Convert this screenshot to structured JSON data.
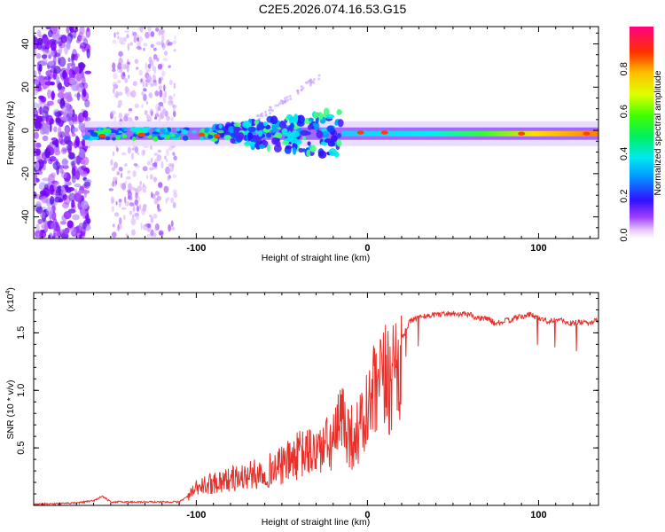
{
  "title": "C2E5.2026.074.16.53.G15",
  "chart_data": [
    {
      "type": "heatmap",
      "xlabel": "Height of straight line (km)",
      "ylabel": "Frequency (Hz)",
      "xlim": [
        -195,
        135
      ],
      "ylim": [
        -50,
        48
      ],
      "x_ticks": [
        -100,
        0,
        100
      ],
      "y_ticks": [
        -40,
        -20,
        0,
        20,
        40
      ],
      "colorbar": {
        "label": "Normalized spectral amplitude",
        "range": [
          0.0,
          1.0
        ],
        "ticks": [
          "0.0",
          "0.2",
          "0.4",
          "0.6",
          "0.8"
        ],
        "tick_values": [
          0.0,
          0.2,
          0.4,
          0.6,
          0.8
        ]
      },
      "features": [
        {
          "name": "noise-region-1",
          "x_range": [
            -195,
            -163
          ],
          "f_range": [
            -50,
            48
          ],
          "amplitude": 0.15
        },
        {
          "name": "noise-region-2",
          "x_range": [
            -150,
            -112
          ],
          "f_range": [
            -50,
            48
          ],
          "amplitude": 0.08
        },
        {
          "name": "tone-band",
          "x_range": [
            -165,
            135
          ],
          "f_center": -1.5,
          "amplitude": 0.95
        },
        {
          "name": "upper-branch",
          "x_start": -65,
          "x_end": -28,
          "f_start": 5,
          "f_end": 25,
          "amplitude": 0.1
        }
      ]
    },
    {
      "type": "line",
      "xlabel": "Height of straight line (km)",
      "ylabel": "SNR (10 * v/v)",
      "multiplier": "(x10^4)",
      "multiplier_base": "(x10",
      "multiplier_exp": "4",
      "multiplier_close": ")",
      "xlim": [
        -195,
        135
      ],
      "ylim": [
        0,
        1.85
      ],
      "x_ticks": [
        -100,
        0,
        100
      ],
      "y_ticks": [
        0.5,
        1.0,
        1.5
      ],
      "y_tick_labels": [
        "0.5",
        "1.0",
        "1.5"
      ],
      "color": "#e8302a",
      "series": [
        {
          "name": "SNR",
          "x": [
            -195,
            -170,
            -160,
            -155,
            -150,
            -130,
            -110,
            -105,
            -100,
            -90,
            -80,
            -70,
            -60,
            -50,
            -40,
            -30,
            -20,
            -14,
            -10,
            -5,
            0,
            5,
            10,
            15,
            20,
            25,
            30,
            40,
            50,
            60,
            65,
            70,
            75,
            80,
            85,
            90,
            95,
            100,
            105,
            110,
            115,
            120,
            125,
            130,
            135
          ],
          "y": [
            0.01,
            0.02,
            0.04,
            0.08,
            0.03,
            0.03,
            0.03,
            0.08,
            0.16,
            0.22,
            0.25,
            0.28,
            0.32,
            0.38,
            0.48,
            0.52,
            0.6,
            0.85,
            0.65,
            0.7,
            0.88,
            1.08,
            1.15,
            1.3,
            1.45,
            1.6,
            1.64,
            1.66,
            1.67,
            1.66,
            1.62,
            1.63,
            1.58,
            1.6,
            1.62,
            1.64,
            1.66,
            1.63,
            1.6,
            1.62,
            1.6,
            1.58,
            1.6,
            1.58,
            1.62
          ]
        }
      ]
    }
  ]
}
